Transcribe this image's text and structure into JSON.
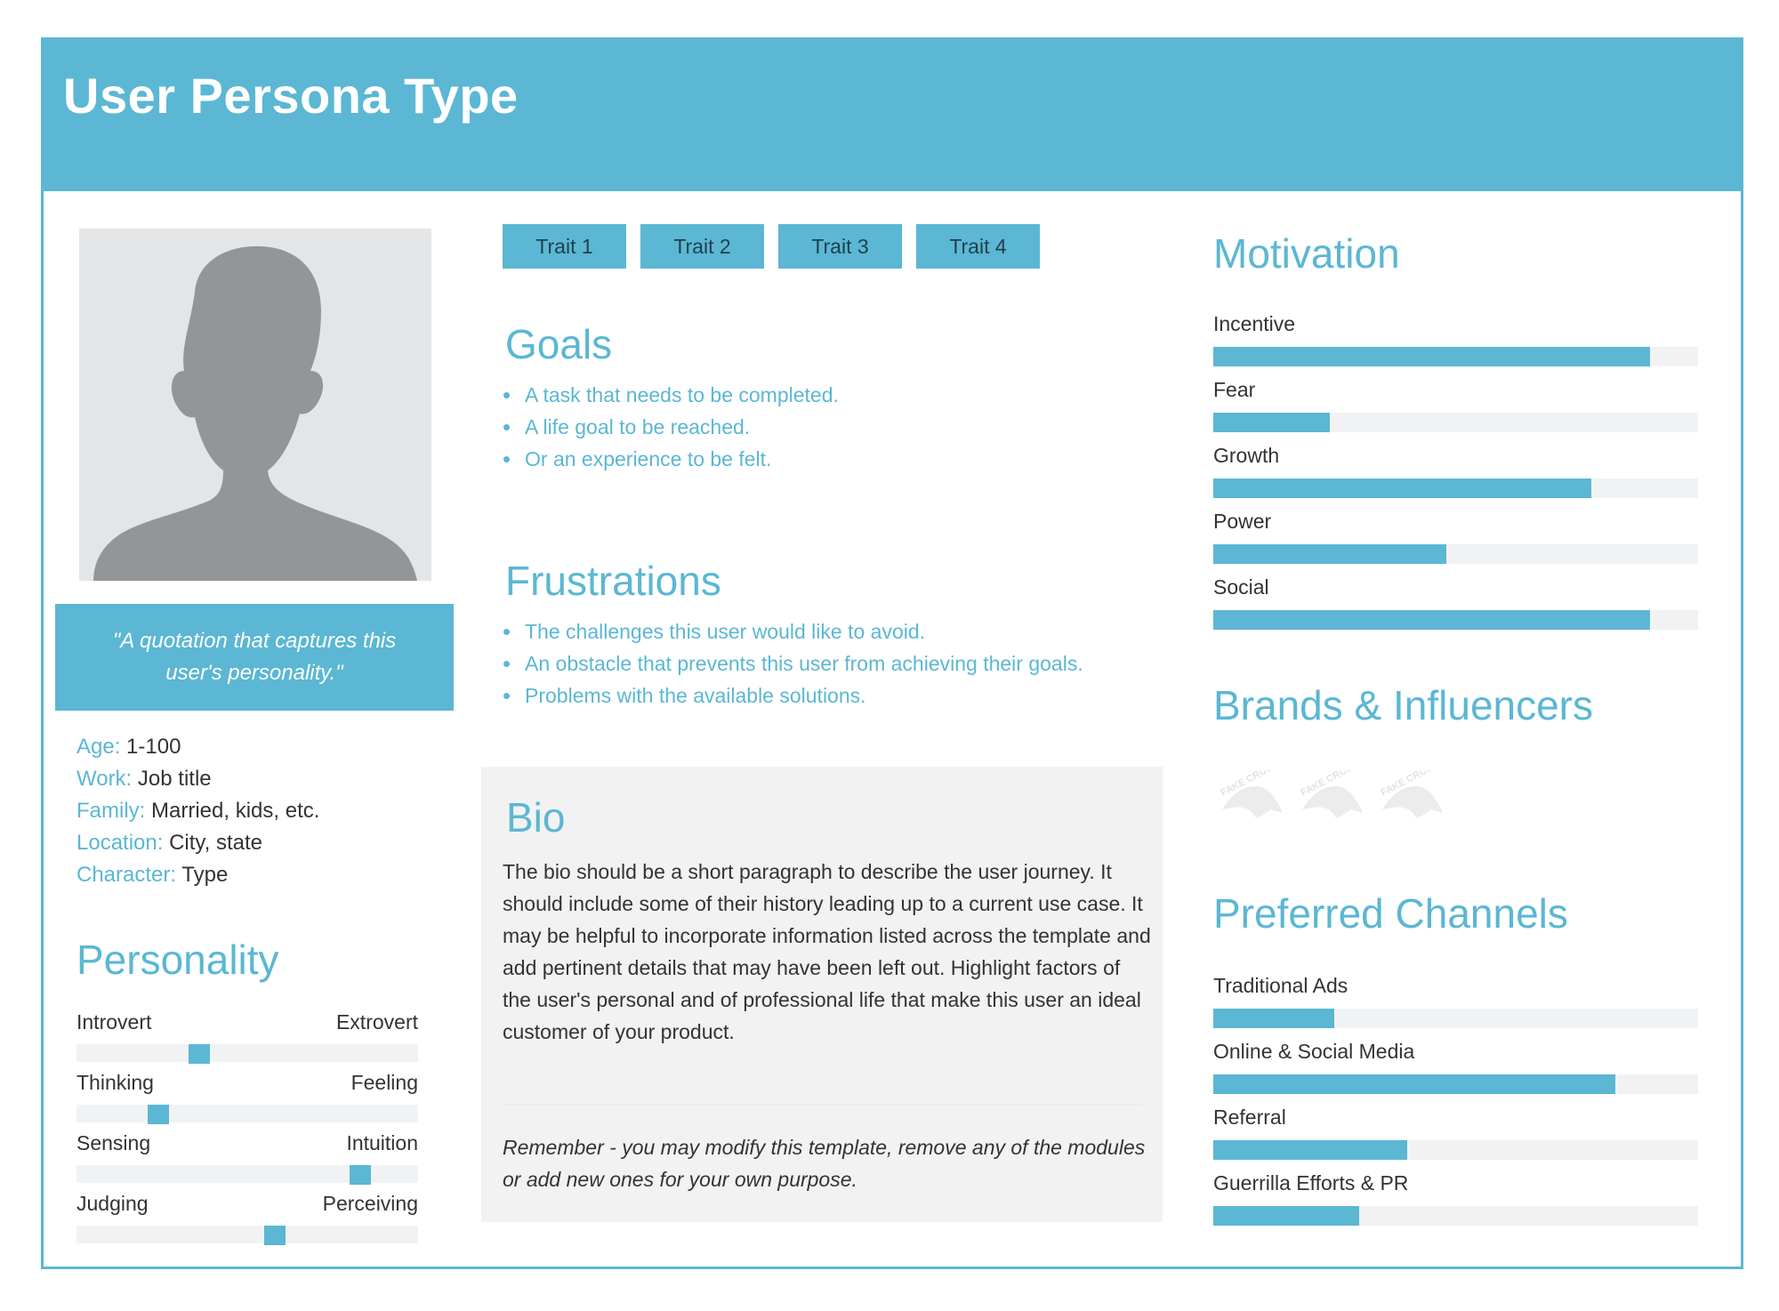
{
  "header": {
    "title": "User Persona Type"
  },
  "profile": {
    "quote": "\"A quotation that captures this user's personality.\"",
    "facts": [
      {
        "label": "Age:",
        "value": "1-100"
      },
      {
        "label": "Work:",
        "value": "Job title"
      },
      {
        "label": "Family:",
        "value": "Married, kids, etc."
      },
      {
        "label": "Location:",
        "value": "City, state"
      },
      {
        "label": "Character:",
        "value": "Type"
      }
    ]
  },
  "personality": {
    "title": "Personality",
    "scales": [
      {
        "left": "Introvert",
        "right": "Extrovert",
        "position": 0.36
      },
      {
        "left": "Thinking",
        "right": "Feeling",
        "position": 0.24
      },
      {
        "left": "Sensing",
        "right": "Intuition",
        "position": 0.83
      },
      {
        "left": "Judging",
        "right": "Perceiving",
        "position": 0.58
      }
    ]
  },
  "traits": [
    "Trait 1",
    "Trait 2",
    "Trait 3",
    "Trait 4"
  ],
  "goals": {
    "title": "Goals",
    "items": [
      "A task that needs to be completed.",
      "A life goal to be reached.",
      "Or an experience to be felt."
    ]
  },
  "frustrations": {
    "title": "Frustrations",
    "items": [
      "The challenges this user would like to avoid.",
      "An obstacle that prevents this user from achieving their goals.",
      "Problems with the available solutions."
    ]
  },
  "bio": {
    "title": "Bio",
    "text": "The bio should be a short paragraph to describe the user journey. It should include some of their history leading up to a current use case. It may be helpful to incorporate information listed across the template and add pertinent details that may have been left out. Highlight factors of the user's personal and of professional life that make this user an ideal customer of your product.",
    "note": "Remember - you may modify this template, remove any of the modules or add new ones for your own purpose."
  },
  "motivation": {
    "title": "Motivation",
    "items": [
      {
        "name": "Incentive",
        "value": 0.9
      },
      {
        "name": "Fear",
        "value": 0.24
      },
      {
        "name": "Growth",
        "value": 0.78
      },
      {
        "name": "Power",
        "value": 0.48
      },
      {
        "name": "Social",
        "value": 0.9
      }
    ]
  },
  "brands": {
    "title": "Brands & Influencers",
    "logo_icon": "fake-crow-logo-icon",
    "logo_text": "FAKE CROW"
  },
  "channels": {
    "title": "Preferred Channels",
    "items": [
      {
        "name": "Traditional Ads",
        "value": 0.25
      },
      {
        "name": "Online & Social Media",
        "value": 0.83
      },
      {
        "name": "Referral",
        "value": 0.4
      },
      {
        "name": "Guerrilla Efforts & PR",
        "value": 0.3
      }
    ]
  },
  "colors": {
    "accent": "#5bb7d3",
    "panel": "#f2f2f3",
    "track": "#f1f2f3",
    "avatar_bg": "#e4e5e7",
    "silhouette": "#939598"
  }
}
